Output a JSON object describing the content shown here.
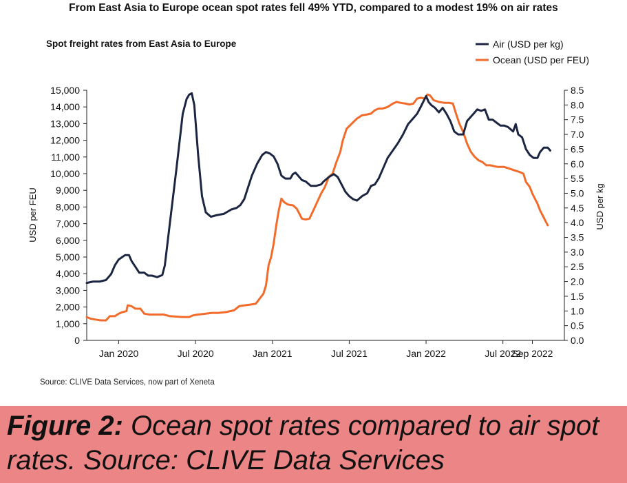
{
  "page_title": "From East Asia to Europe ocean spot rates fell 49% YTD, compared to a modest 19% on air rates",
  "source_note": "Source: CLIVE Data Services, now part of Xeneta",
  "caption": {
    "label": "Figure 2:",
    "text": " Ocean spot rates compared to air spot rates. Source: CLIVE Data Services"
  },
  "chart_data": {
    "type": "line",
    "title": "Spot freight rates from East Asia to Europe",
    "ylabel_left": "USD per FEU",
    "ylabel_right": "USD per kg",
    "ylim_left": [
      0,
      15000
    ],
    "ylim_right": [
      0,
      8.5
    ],
    "xlim": [
      -2.5,
      34.8
    ],
    "left_ticks": [
      "0",
      "1,000",
      "2,000",
      "3,000",
      "4,000",
      "5,000",
      "6,000",
      "7,000",
      "8,000",
      "9,000",
      "10,000",
      "11,000",
      "12,000",
      "13,000",
      "14,000",
      "15,000"
    ],
    "right_ticks": [
      "0.0",
      "0.5",
      "1.0",
      "1.5",
      "2.0",
      "2.5",
      "3.0",
      "3.5",
      "4.0",
      "4.5",
      "5.0",
      "5.5",
      "6.0",
      "6.5",
      "7.0",
      "7.5",
      "8.0",
      "8.5"
    ],
    "x_ticks": [
      {
        "x": 0,
        "label": "Jan 2020"
      },
      {
        "x": 6,
        "label": "Jul 2020"
      },
      {
        "x": 12,
        "label": "Jan 2021"
      },
      {
        "x": 18,
        "label": "Jul 2021"
      },
      {
        "x": 24,
        "label": "Jan 2022"
      },
      {
        "x": 30,
        "label": "Jul 2022"
      },
      {
        "x": 32.3,
        "label": "Sep 2022"
      }
    ],
    "series": [
      {
        "name": "Air (USD per kg)",
        "axis": "right",
        "color": "#1c2541",
        "points": [
          [
            -2.5,
            1.95
          ],
          [
            -2.0,
            2.0
          ],
          [
            -1.5,
            2.0
          ],
          [
            -1.0,
            2.05
          ],
          [
            -0.6,
            2.25
          ],
          [
            -0.3,
            2.55
          ],
          [
            0.0,
            2.75
          ],
          [
            0.5,
            2.9
          ],
          [
            0.8,
            2.9
          ],
          [
            1.0,
            2.7
          ],
          [
            1.3,
            2.5
          ],
          [
            1.6,
            2.3
          ],
          [
            2.0,
            2.3
          ],
          [
            2.3,
            2.2
          ],
          [
            2.6,
            2.2
          ],
          [
            3.0,
            2.15
          ],
          [
            3.4,
            2.22
          ],
          [
            3.6,
            2.55
          ],
          [
            4.0,
            4.0
          ],
          [
            4.5,
            5.8
          ],
          [
            5.0,
            7.7
          ],
          [
            5.3,
            8.2
          ],
          [
            5.5,
            8.35
          ],
          [
            5.7,
            8.4
          ],
          [
            5.9,
            8.0
          ],
          [
            6.2,
            6.3
          ],
          [
            6.5,
            4.9
          ],
          [
            6.8,
            4.35
          ],
          [
            7.2,
            4.2
          ],
          [
            7.6,
            4.25
          ],
          [
            8.2,
            4.3
          ],
          [
            8.8,
            4.45
          ],
          [
            9.2,
            4.5
          ],
          [
            9.5,
            4.6
          ],
          [
            9.8,
            4.8
          ],
          [
            10.1,
            5.2
          ],
          [
            10.4,
            5.6
          ],
          [
            10.8,
            6.0
          ],
          [
            11.2,
            6.3
          ],
          [
            11.5,
            6.4
          ],
          [
            11.8,
            6.35
          ],
          [
            12.1,
            6.25
          ],
          [
            12.4,
            6.0
          ],
          [
            12.7,
            5.6
          ],
          [
            13.0,
            5.5
          ],
          [
            13.4,
            5.5
          ],
          [
            13.6,
            5.65
          ],
          [
            13.8,
            5.7
          ],
          [
            14.0,
            5.6
          ],
          [
            14.3,
            5.45
          ],
          [
            14.6,
            5.4
          ],
          [
            15.0,
            5.25
          ],
          [
            15.4,
            5.25
          ],
          [
            15.8,
            5.3
          ],
          [
            16.0,
            5.4
          ],
          [
            16.4,
            5.55
          ],
          [
            16.8,
            5.65
          ],
          [
            17.1,
            5.55
          ],
          [
            17.4,
            5.3
          ],
          [
            17.7,
            5.05
          ],
          [
            18.0,
            4.9
          ],
          [
            18.3,
            4.8
          ],
          [
            18.6,
            4.75
          ],
          [
            19.0,
            4.9
          ],
          [
            19.4,
            5.0
          ],
          [
            19.7,
            5.25
          ],
          [
            20.0,
            5.3
          ],
          [
            20.3,
            5.5
          ],
          [
            20.6,
            5.8
          ],
          [
            21.0,
            6.2
          ],
          [
            21.4,
            6.45
          ],
          [
            21.8,
            6.7
          ],
          [
            22.2,
            7.0
          ],
          [
            22.6,
            7.35
          ],
          [
            22.9,
            7.5
          ],
          [
            23.3,
            7.7
          ],
          [
            23.6,
            7.95
          ],
          [
            24.0,
            8.3
          ],
          [
            24.2,
            8.1
          ],
          [
            24.4,
            8.0
          ],
          [
            24.7,
            7.9
          ],
          [
            25.0,
            7.75
          ],
          [
            25.3,
            7.9
          ],
          [
            25.6,
            7.7
          ],
          [
            25.9,
            7.45
          ],
          [
            26.2,
            7.1
          ],
          [
            26.5,
            7.0
          ],
          [
            26.9,
            7.0
          ],
          [
            27.2,
            7.45
          ],
          [
            27.5,
            7.6
          ],
          [
            27.7,
            7.7
          ],
          [
            28.0,
            7.85
          ],
          [
            28.3,
            7.8
          ],
          [
            28.6,
            7.85
          ],
          [
            28.9,
            7.5
          ],
          [
            29.2,
            7.5
          ],
          [
            29.5,
            7.4
          ],
          [
            29.8,
            7.3
          ],
          [
            30.1,
            7.3
          ],
          [
            30.4,
            7.25
          ],
          [
            30.8,
            7.1
          ],
          [
            31.0,
            7.35
          ],
          [
            31.2,
            7.0
          ],
          [
            31.5,
            6.9
          ],
          [
            31.8,
            6.5
          ],
          [
            32.1,
            6.3
          ],
          [
            32.4,
            6.2
          ],
          [
            32.7,
            6.2
          ],
          [
            32.9,
            6.4
          ],
          [
            33.2,
            6.55
          ],
          [
            33.5,
            6.55
          ],
          [
            33.7,
            6.45
          ]
        ]
      },
      {
        "name": "Ocean (USD per FEU)",
        "axis": "left",
        "color": "#f26b2a",
        "points": [
          [
            -2.5,
            1400
          ],
          [
            -2.2,
            1300
          ],
          [
            -1.8,
            1250
          ],
          [
            -1.4,
            1200
          ],
          [
            -1.0,
            1200
          ],
          [
            -0.7,
            1450
          ],
          [
            -0.3,
            1450
          ],
          [
            0.0,
            1600
          ],
          [
            0.3,
            1700
          ],
          [
            0.6,
            1750
          ],
          [
            0.7,
            2100
          ],
          [
            1.0,
            2050
          ],
          [
            1.3,
            1900
          ],
          [
            1.7,
            1900
          ],
          [
            2.0,
            1600
          ],
          [
            2.4,
            1550
          ],
          [
            3.0,
            1550
          ],
          [
            3.5,
            1550
          ],
          [
            4.0,
            1450
          ],
          [
            5.0,
            1400
          ],
          [
            5.5,
            1400
          ],
          [
            5.8,
            1500
          ],
          [
            6.2,
            1550
          ],
          [
            6.8,
            1600
          ],
          [
            7.3,
            1650
          ],
          [
            7.8,
            1650
          ],
          [
            8.4,
            1700
          ],
          [
            9.0,
            1800
          ],
          [
            9.4,
            2050
          ],
          [
            9.8,
            2100
          ],
          [
            10.3,
            2150
          ],
          [
            10.7,
            2200
          ],
          [
            11.0,
            2500
          ],
          [
            11.3,
            2800
          ],
          [
            11.5,
            3300
          ],
          [
            11.7,
            4500
          ],
          [
            11.9,
            5000
          ],
          [
            12.1,
            5800
          ],
          [
            12.3,
            6900
          ],
          [
            12.5,
            7800
          ],
          [
            12.7,
            8500
          ],
          [
            12.9,
            8300
          ],
          [
            13.2,
            8150
          ],
          [
            13.6,
            8100
          ],
          [
            13.9,
            7900
          ],
          [
            14.1,
            7600
          ],
          [
            14.3,
            7300
          ],
          [
            14.6,
            7250
          ],
          [
            14.9,
            7300
          ],
          [
            15.2,
            7800
          ],
          [
            15.5,
            8300
          ],
          [
            15.8,
            8800
          ],
          [
            16.1,
            9200
          ],
          [
            16.4,
            9800
          ],
          [
            16.7,
            10000
          ],
          [
            17.0,
            10700
          ],
          [
            17.3,
            11300
          ],
          [
            17.5,
            12000
          ],
          [
            17.8,
            12700
          ],
          [
            18.2,
            13000
          ],
          [
            18.6,
            13300
          ],
          [
            19.0,
            13500
          ],
          [
            19.4,
            13550
          ],
          [
            19.7,
            13600
          ],
          [
            20.0,
            13800
          ],
          [
            20.3,
            13900
          ],
          [
            20.6,
            13900
          ],
          [
            21.0,
            14000
          ],
          [
            21.4,
            14200
          ],
          [
            21.7,
            14300
          ],
          [
            22.0,
            14250
          ],
          [
            22.4,
            14200
          ],
          [
            22.7,
            14150
          ],
          [
            23.0,
            14200
          ],
          [
            23.3,
            14500
          ],
          [
            23.6,
            14550
          ],
          [
            23.9,
            14500
          ],
          [
            24.1,
            14750
          ],
          [
            24.3,
            14700
          ],
          [
            24.6,
            14400
          ],
          [
            25.0,
            14300
          ],
          [
            25.4,
            14250
          ],
          [
            25.8,
            14250
          ],
          [
            26.1,
            14200
          ],
          [
            26.3,
            13700
          ],
          [
            26.6,
            13000
          ],
          [
            26.9,
            12500
          ],
          [
            27.2,
            11800
          ],
          [
            27.5,
            11300
          ],
          [
            27.8,
            11000
          ],
          [
            28.1,
            10800
          ],
          [
            28.4,
            10700
          ],
          [
            28.7,
            10500
          ],
          [
            29.0,
            10500
          ],
          [
            29.6,
            10400
          ],
          [
            30.1,
            10400
          ],
          [
            30.5,
            10300
          ],
          [
            30.9,
            10200
          ],
          [
            31.3,
            10100
          ],
          [
            31.6,
            10000
          ],
          [
            31.8,
            9500
          ],
          [
            32.1,
            9200
          ],
          [
            32.3,
            8800
          ],
          [
            32.5,
            8500
          ],
          [
            32.7,
            8200
          ],
          [
            32.9,
            7800
          ],
          [
            33.1,
            7500
          ],
          [
            33.3,
            7200
          ],
          [
            33.5,
            6900
          ]
        ]
      }
    ],
    "legend": "top-right",
    "grid": false
  }
}
